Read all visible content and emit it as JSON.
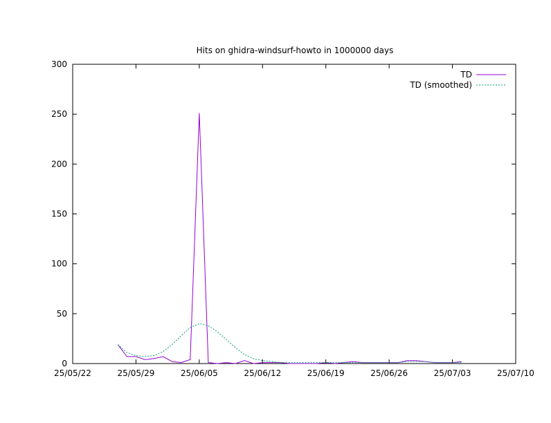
{
  "chart_data": {
    "type": "line",
    "title": "Hits on ghidra-windsurf-howto in 1000000 days",
    "xlabel": "",
    "ylabel": "",
    "ylim": [
      0,
      300
    ],
    "xlim": [
      "2025-05-22",
      "2025-07-10"
    ],
    "x_tick_labels": [
      "25/05/22",
      "25/05/29",
      "25/06/05",
      "25/06/12",
      "25/06/19",
      "25/06/26",
      "25/07/03",
      "25/07/10"
    ],
    "x_tick_dates": [
      "2025-05-22",
      "2025-05-29",
      "2025-06-05",
      "2025-06-12",
      "2025-06-19",
      "2025-06-26",
      "2025-07-03",
      "2025-07-10"
    ],
    "y_ticks": [
      0,
      50,
      100,
      150,
      200,
      250,
      300
    ],
    "grid": false,
    "legend_position": "top-right",
    "series": [
      {
        "name": "TD",
        "color": "#9400d3",
        "x": [
          "2025-05-27",
          "2025-05-28",
          "2025-05-29",
          "2025-05-30",
          "2025-05-31",
          "2025-06-01",
          "2025-06-02",
          "2025-06-03",
          "2025-06-04",
          "2025-06-05",
          "2025-06-06",
          "2025-06-07",
          "2025-06-08",
          "2025-06-09",
          "2025-06-10",
          "2025-06-11",
          "2025-06-12",
          "2025-06-13",
          "2025-06-14",
          "2025-06-15",
          "2025-06-16",
          "2025-06-17",
          "2025-06-18",
          "2025-06-19",
          "2025-06-20",
          "2025-06-21",
          "2025-06-22",
          "2025-06-23",
          "2025-06-24",
          "2025-06-25",
          "2025-06-26",
          "2025-06-27",
          "2025-06-28",
          "2025-06-29",
          "2025-06-30",
          "2025-07-01",
          "2025-07-02",
          "2025-07-03",
          "2025-07-04"
        ],
        "values": [
          19,
          7,
          7,
          4,
          5,
          7,
          2,
          1,
          4,
          251,
          1,
          0,
          1,
          0,
          3,
          0,
          1,
          1,
          1,
          0,
          0,
          0,
          0,
          1,
          0,
          1,
          2,
          1,
          1,
          1,
          1,
          1,
          3,
          3,
          2,
          1,
          1,
          1,
          2
        ]
      },
      {
        "name": "TD (smoothed)",
        "color": "#009e73",
        "x": [
          "2025-05-27",
          "2025-05-28",
          "2025-05-29",
          "2025-05-30",
          "2025-05-31",
          "2025-06-01",
          "2025-06-02",
          "2025-06-03",
          "2025-06-04",
          "2025-06-05",
          "2025-06-06",
          "2025-06-07",
          "2025-06-08",
          "2025-06-09",
          "2025-06-10",
          "2025-06-11",
          "2025-06-12",
          "2025-06-13",
          "2025-06-14",
          "2025-06-15",
          "2025-06-16",
          "2025-06-17",
          "2025-06-18",
          "2025-06-19",
          "2025-06-20",
          "2025-06-21",
          "2025-06-22",
          "2025-06-23",
          "2025-06-24",
          "2025-06-25",
          "2025-06-26",
          "2025-06-27",
          "2025-06-28",
          "2025-06-29",
          "2025-06-30",
          "2025-07-01",
          "2025-07-02",
          "2025-07-03",
          "2025-07-04"
        ],
        "values": [
          19,
          11,
          8,
          7,
          8,
          12,
          19,
          28,
          36,
          40,
          38,
          32,
          24,
          16,
          9,
          5,
          3,
          2,
          1,
          1,
          1,
          1,
          1,
          1,
          1,
          1,
          1,
          1,
          1,
          1,
          1,
          1,
          2,
          2,
          2,
          1,
          1,
          1,
          1
        ]
      }
    ]
  }
}
